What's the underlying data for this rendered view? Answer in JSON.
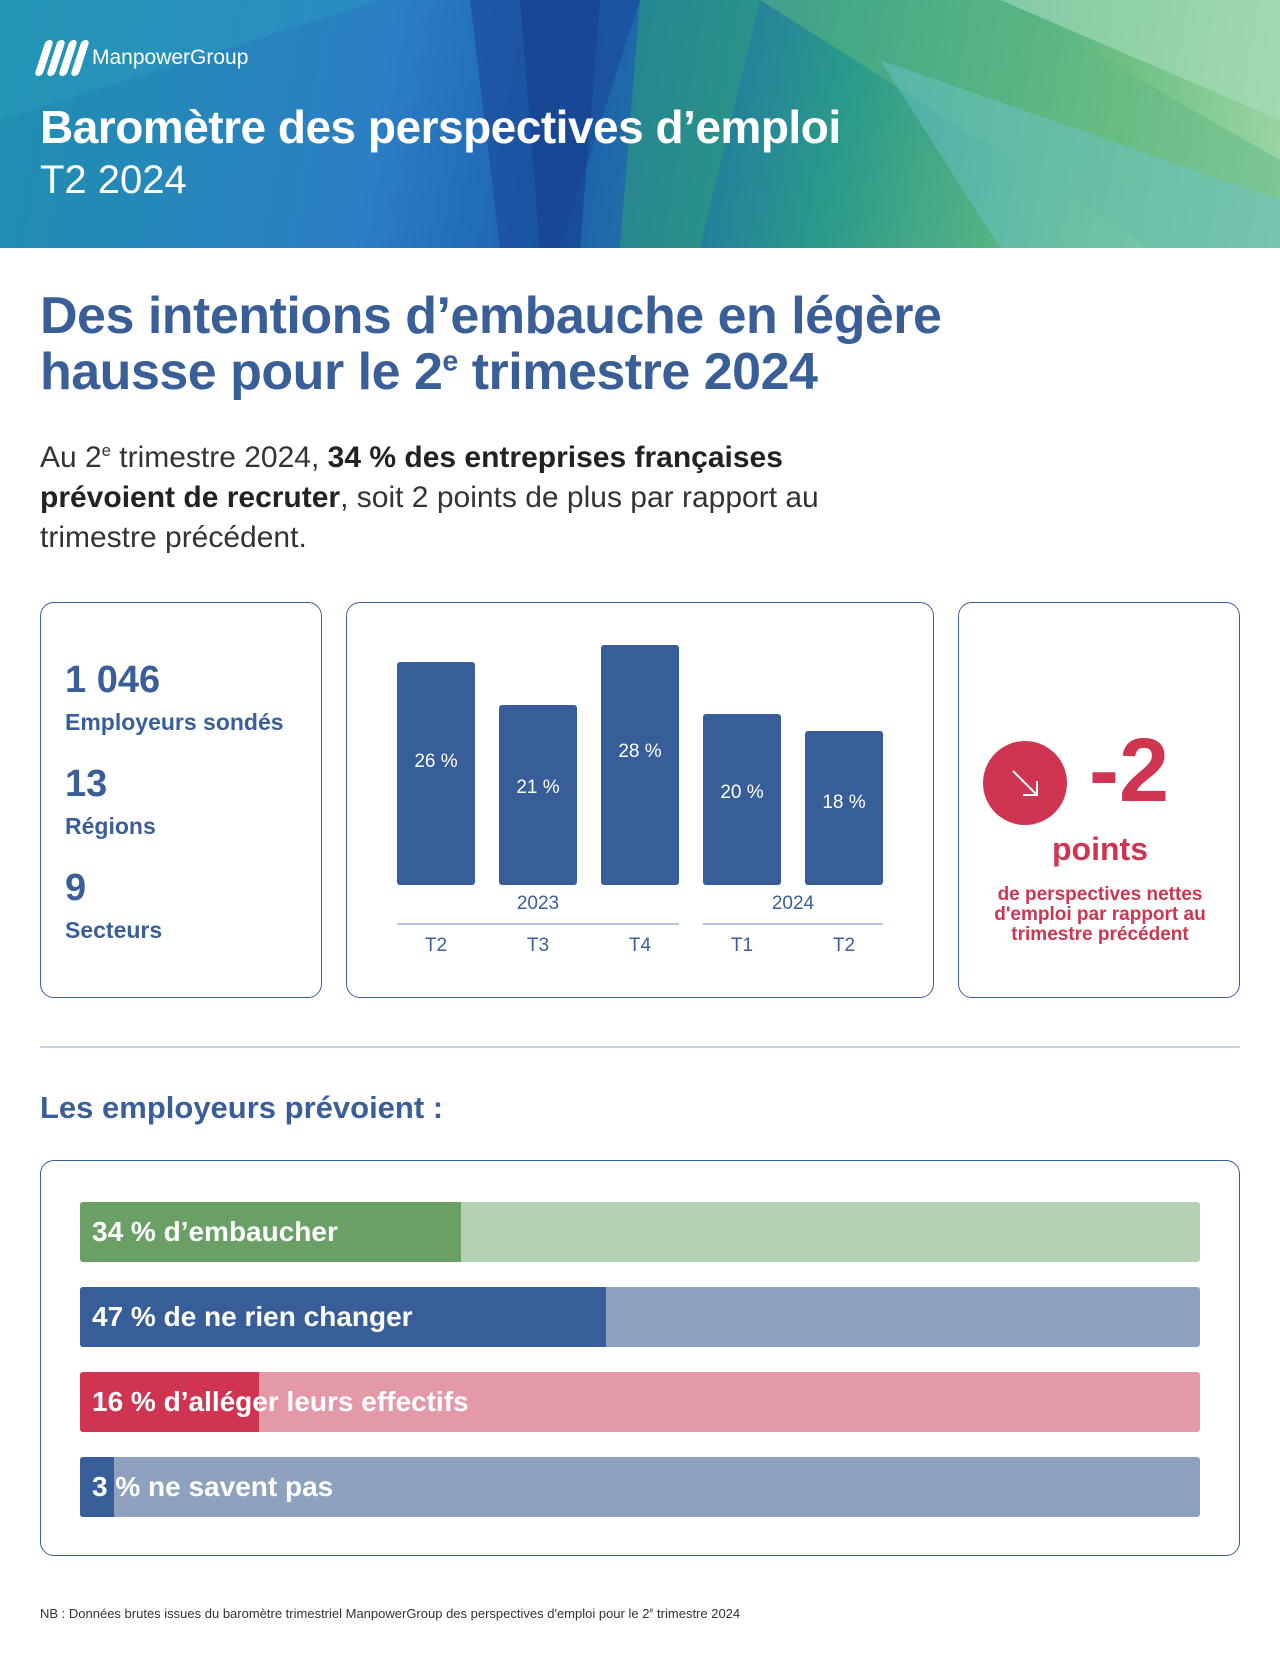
{
  "header": {
    "brand": "ManpowerGroup",
    "title": "Baromètre des perspectives d’emploi",
    "subtitle": "T2 2024"
  },
  "headline": {
    "line1": "Des intentions d’embauche en légère",
    "line2_pre": "hausse pour le 2",
    "line2_sup": "e",
    "line2_post": " trimestre 2024"
  },
  "intro": {
    "p1": "Au 2",
    "sup": "e",
    "p2": " trimestre 2024, ",
    "bold": "34 % des entreprises françaises prévoient de recruter",
    "p3": ", soit 2 points de plus par rapport au trimestre précédent."
  },
  "stats": [
    {
      "value": "1 046",
      "label": "Employeurs sondés"
    },
    {
      "value": "13",
      "label": "Régions"
    },
    {
      "value": "9",
      "label": "Secteurs"
    }
  ],
  "chart_data": {
    "type": "bar",
    "categories": [
      "T2",
      "T3",
      "T4",
      "T1",
      "T2"
    ],
    "groups": [
      "2023",
      "2023",
      "2023",
      "2024",
      "2024"
    ],
    "group_labels": [
      "2023",
      "2024"
    ],
    "values": [
      26,
      21,
      28,
      20,
      18
    ],
    "value_labels": [
      "26 %",
      "21 %",
      "28 %",
      "20 %",
      "18 %"
    ],
    "ylim": [
      0,
      28
    ]
  },
  "delta": {
    "value": "-2",
    "unit": "points",
    "description": "de perspectives nettes d'emploi par rapport au trimestre précédent",
    "icon": "arrow-down-right-icon"
  },
  "section_title": "Les employeurs prévoient :",
  "intentions": [
    {
      "percent": 34,
      "label": "34 % d’embaucher",
      "color": "#6aa066",
      "track": "#b3d1b2"
    },
    {
      "percent": 47,
      "label": "47 % de ne rien changer",
      "color": "#375e98",
      "track": "#8ea2bf"
    },
    {
      "percent": 16,
      "label": "16 % d’alléger leurs effectifs",
      "color": "#cf3450",
      "track": "#e499a8"
    },
    {
      "percent": 3,
      "label": "3 % ne savent pas",
      "color": "#375e98",
      "track": "#8ea2bf"
    }
  ],
  "footnote": {
    "pre": "NB : Données brutes issues du baromètre trimestriel ManpowerGroup des perspectives d'emploi pour le 2",
    "sup": "e",
    "post": " trimestre 2024"
  }
}
